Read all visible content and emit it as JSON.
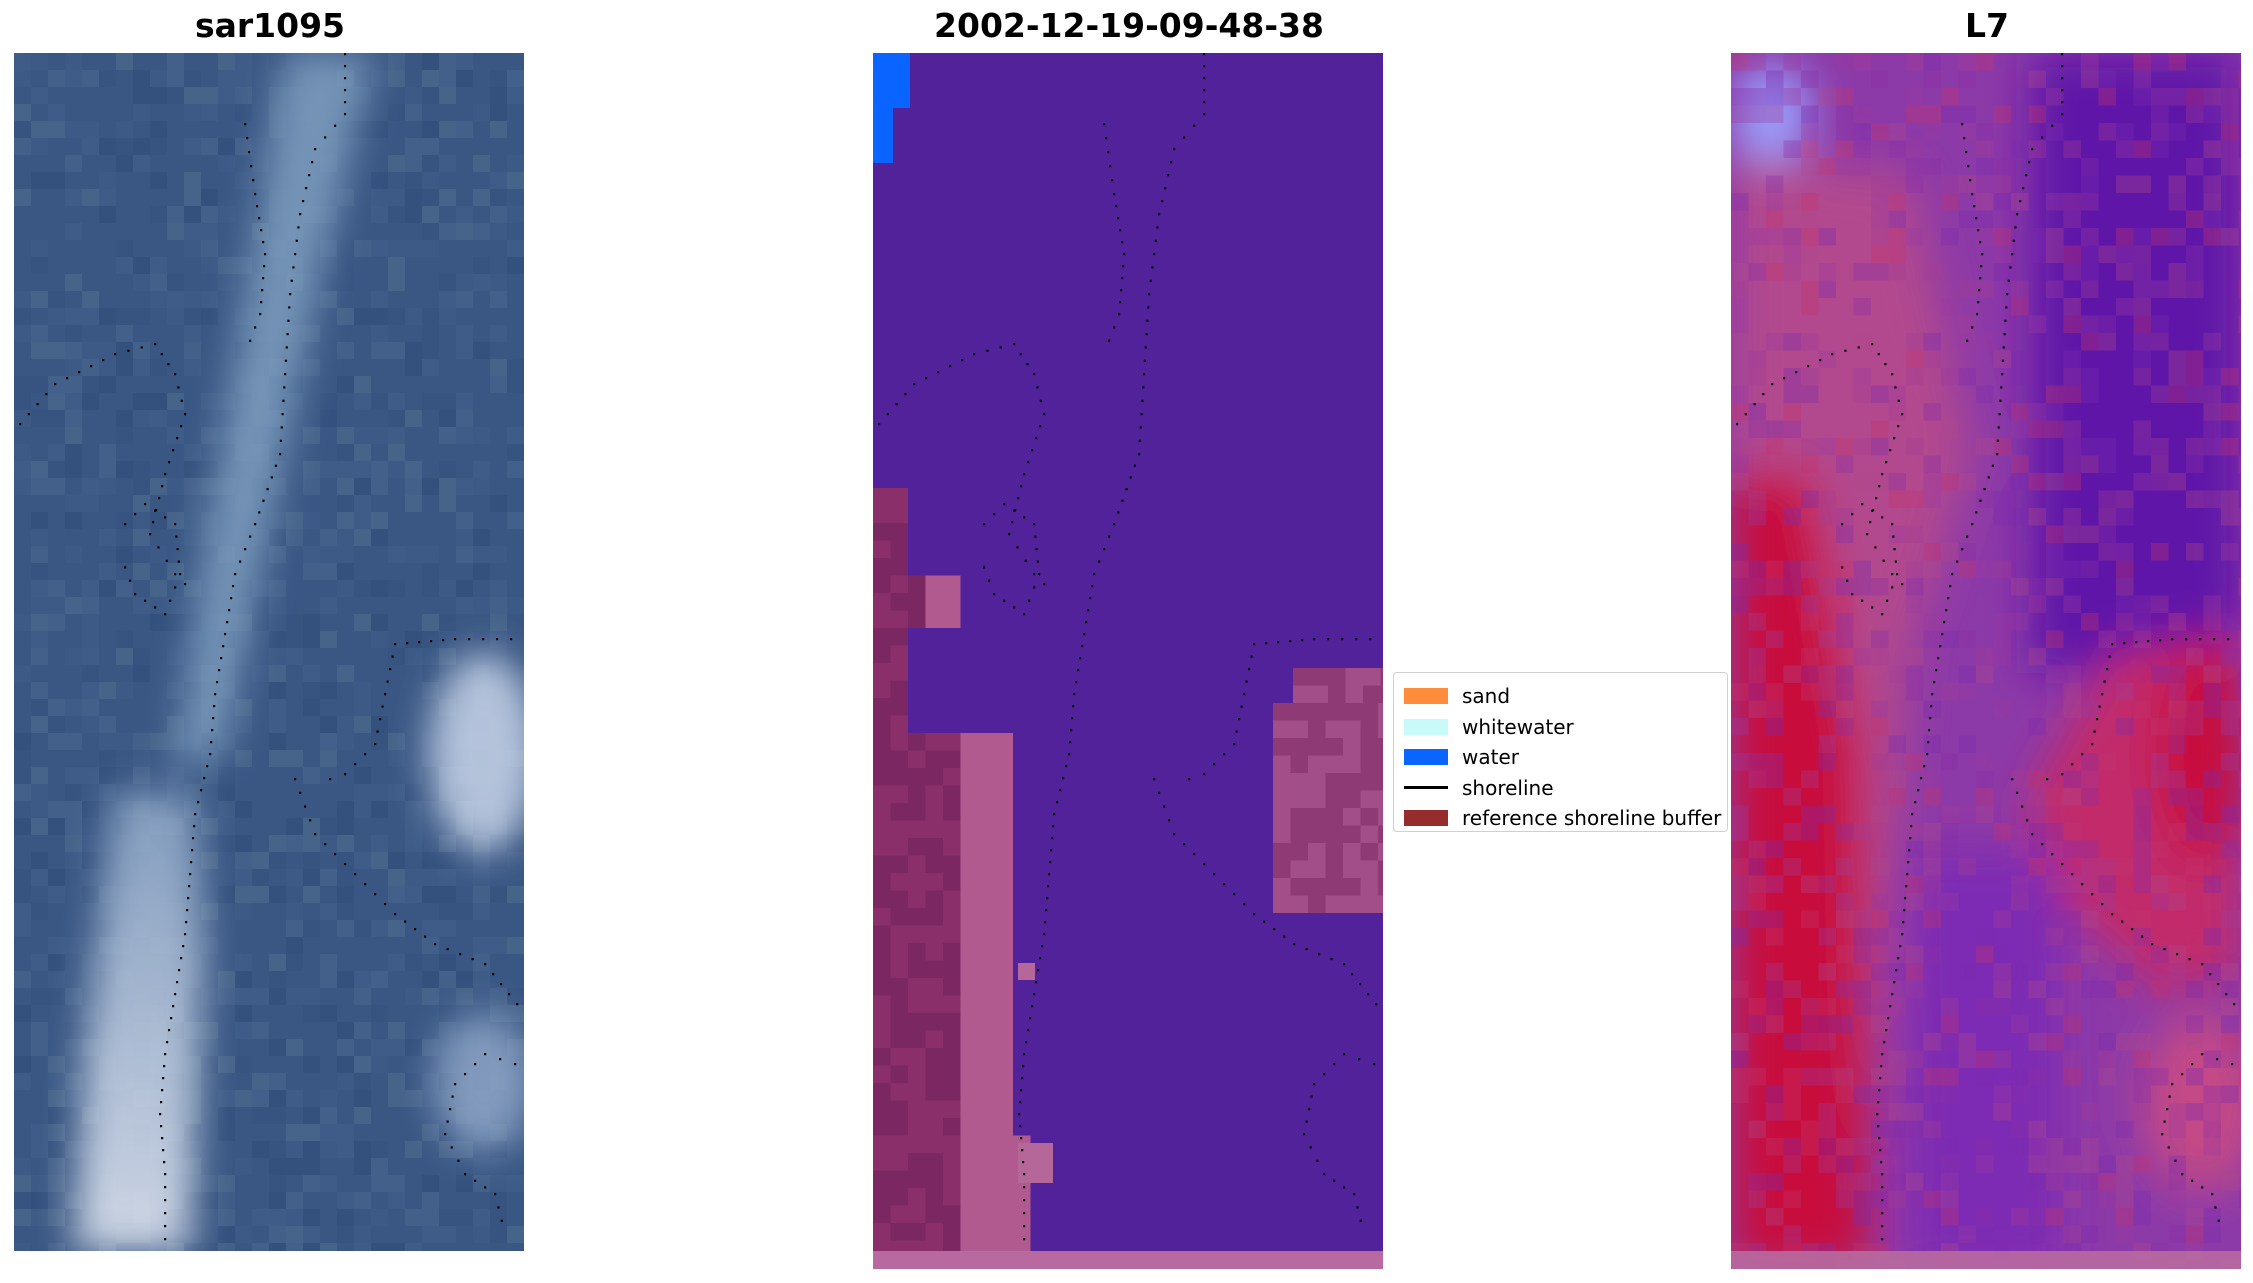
{
  "panels": [
    {
      "title": "sar1095"
    },
    {
      "title": "2002-12-19-09-48-38"
    },
    {
      "title": "L7"
    }
  ],
  "legend": {
    "items": [
      {
        "label": "sand",
        "color": "#ff8c3a",
        "kind": "patch"
      },
      {
        "label": "whitewater",
        "color": "#c8fafa",
        "kind": "patch"
      },
      {
        "label": "water",
        "color": "#0a64ff",
        "kind": "patch"
      },
      {
        "label": "shoreline",
        "color": "#000000",
        "kind": "line"
      },
      {
        "label": "reference shoreline buffer",
        "color": "#962d2d",
        "kind": "patch"
      }
    ]
  },
  "colors": {
    "class_background": "#52229a",
    "class_water": "#0a64ff",
    "class_buffer": "#8a2f6a",
    "sar_base": "#3a5784",
    "l7_base": "#8c3aa8",
    "l7_red": "#c8113e",
    "shoreline": "#000000"
  }
}
